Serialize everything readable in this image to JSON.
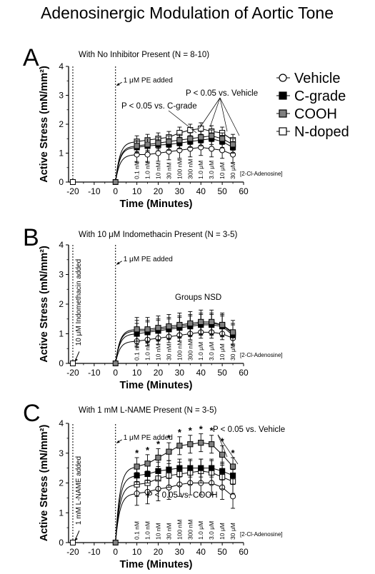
{
  "title": "Adenosinergic Modulation of Aortic Tone",
  "legend": {
    "entries": [
      {
        "label": "Vehicle",
        "marker": "circle",
        "fill": "#ffffff"
      },
      {
        "label": "C-grade",
        "marker": "square",
        "fill": "#000000"
      },
      {
        "label": "COOH",
        "marker": "square",
        "fill": "#7f7f7f"
      },
      {
        "label": "N-doped",
        "marker": "square",
        "fill": "#ffffff"
      }
    ]
  },
  "colors": {
    "vehicle": "#ffffff",
    "c_grade": "#000000",
    "cooh": "#7f7f7f",
    "n_doped": "#ffffff"
  },
  "chart_data": [
    {
      "type": "line",
      "panel_label": "A",
      "subtitle": "With No Inhibitor Present (N = 8-10)",
      "xlabel": "Time (Minutes)",
      "ylabel": "Active Stress (mN/mm²)",
      "xlim": [
        -22,
        60
      ],
      "ylim": [
        0,
        4
      ],
      "xticks": [
        "-20",
        "-10",
        "0",
        "10",
        "20",
        "30",
        "40",
        "50",
        "60"
      ],
      "yticks": [
        "0",
        "1",
        "2",
        "3",
        "4"
      ],
      "annotations": {
        "pe_added": "1 μM  PE added",
        "sig1": "P < 0.05 vs. Vehicle",
        "sig2": "P < 0.05 vs. C-grade",
        "dose_axis": "[2-Cl-Adenosine]"
      },
      "doses": [
        "0.1 nM",
        "1.0 nM",
        "10 nM",
        "30 nM",
        "100 nM",
        "300 nM",
        "1.0 μM",
        "3.0 μM",
        "10 μM",
        "30 μM"
      ],
      "x": [
        10,
        15,
        20,
        25,
        30,
        35,
        40,
        45,
        50,
        55
      ],
      "series": [
        {
          "name": "Vehicle",
          "baseline": 0,
          "values": [
            0.95,
            0.95,
            1.0,
            1.05,
            1.1,
            1.15,
            1.2,
            1.15,
            1.1,
            0.95
          ],
          "err": 0.28
        },
        {
          "name": "C-grade",
          "baseline": 0,
          "values": [
            1.2,
            1.25,
            1.28,
            1.3,
            1.35,
            1.4,
            1.45,
            1.5,
            1.4,
            1.2
          ],
          "err": 0.2
        },
        {
          "name": "COOH",
          "baseline": 0,
          "values": [
            1.25,
            1.3,
            1.35,
            1.4,
            1.45,
            1.5,
            1.55,
            1.6,
            1.5,
            1.3
          ],
          "err": 0.2
        },
        {
          "name": "N-doped",
          "baseline": 0,
          "values": [
            1.4,
            1.45,
            1.5,
            1.55,
            1.7,
            1.8,
            1.85,
            1.75,
            1.7,
            1.45
          ],
          "err": 0.2
        }
      ],
      "stars": []
    },
    {
      "type": "line",
      "panel_label": "B",
      "subtitle": "With 10 μM Indomethacin Present (N = 3-5)",
      "xlabel": "Time (Minutes)",
      "ylabel": "Active Stress (mN/mm²)",
      "xlim": [
        -22,
        60
      ],
      "ylim": [
        0,
        4
      ],
      "xticks": [
        "-20",
        "-10",
        "0",
        "10",
        "20",
        "30",
        "40",
        "50",
        "60"
      ],
      "yticks": [
        "0",
        "1",
        "2",
        "3",
        "4"
      ],
      "annotations": {
        "pe_added": "1 μM  PE added",
        "inhibitor": "10 μM  Indomethacin added",
        "note": "Groups NSD",
        "dose_axis": "[2-Cl-Adenosine]"
      },
      "doses": [
        "0.1 nM",
        "1.0 nM",
        "10 nM",
        "30 nM",
        "100 nM",
        "300 nM",
        "1.0 μM",
        "3.0 μM",
        "10 μM",
        "30 μM"
      ],
      "x": [
        10,
        15,
        20,
        25,
        30,
        35,
        40,
        45,
        50,
        55
      ],
      "series": [
        {
          "name": "Vehicle",
          "baseline": 0,
          "values": [
            0.75,
            0.8,
            0.85,
            0.9,
            0.95,
            1.0,
            1.05,
            1.05,
            1.0,
            0.85
          ],
          "err": 0.2
        },
        {
          "name": "C-grade",
          "baseline": 0,
          "values": [
            1.0,
            1.05,
            1.1,
            1.15,
            1.2,
            1.25,
            1.3,
            1.3,
            1.25,
            0.95
          ],
          "err": 0.35
        },
        {
          "name": "COOH",
          "baseline": 0,
          "values": [
            1.15,
            1.15,
            1.2,
            1.25,
            1.3,
            1.35,
            1.4,
            1.4,
            1.3,
            1.05
          ],
          "err": 0.4
        },
        {
          "name": "N-doped",
          "baseline": 0,
          "values": [
            1.1,
            1.1,
            1.15,
            1.2,
            1.25,
            1.3,
            1.35,
            1.35,
            1.3,
            1.0
          ],
          "err": 0.35
        }
      ],
      "stars": []
    },
    {
      "type": "line",
      "panel_label": "C",
      "subtitle": "With 1 mM L-NAME Present (N = 3-5)",
      "xlabel": "Time (Minutes)",
      "ylabel": "Active Stress (mN/mm²)",
      "xlim": [
        -22,
        60
      ],
      "ylim": [
        0,
        4
      ],
      "xticks": [
        "-20",
        "-10",
        "0",
        "10",
        "20",
        "30",
        "40",
        "50",
        "60"
      ],
      "yticks": [
        "0",
        "1",
        "2",
        "3",
        "4"
      ],
      "annotations": {
        "pe_added": "1 μM  PE added",
        "inhibitor": "1 mM  L-NAME added",
        "sig1": "P < 0.05 vs. Vehicle",
        "sig2": "P < 0.05 vs. COOH",
        "dose_axis": "[2-Cl-Adenosine]"
      },
      "doses": [
        "0.1 nM",
        "1.0 nM",
        "10 nM",
        "30 nM",
        "100 nM",
        "300 nM",
        "1.0 μM",
        "3.0 μM",
        "10 μM",
        "30 μM"
      ],
      "x": [
        10,
        15,
        20,
        25,
        30,
        35,
        40,
        45,
        50,
        55
      ],
      "series": [
        {
          "name": "Vehicle",
          "baseline": 0,
          "values": [
            1.65,
            1.7,
            1.8,
            1.85,
            1.95,
            2.0,
            2.0,
            2.0,
            1.85,
            1.55
          ],
          "err": 0.4
        },
        {
          "name": "C-grade",
          "baseline": 0,
          "values": [
            2.25,
            2.3,
            2.4,
            2.45,
            2.5,
            2.5,
            2.5,
            2.5,
            2.4,
            2.25
          ],
          "err": 0.3
        },
        {
          "name": "COOH",
          "baseline": 0,
          "values": [
            2.55,
            2.65,
            2.85,
            3.05,
            3.25,
            3.3,
            3.35,
            3.3,
            2.95,
            2.55
          ],
          "err": 0.3
        },
        {
          "name": "N-doped",
          "baseline": 0,
          "values": [
            1.95,
            2.0,
            2.15,
            2.25,
            2.3,
            2.35,
            2.4,
            2.35,
            2.2,
            2.05
          ],
          "err": 0.4
        }
      ],
      "stars": [
        "*",
        "*",
        "*",
        "*",
        "*",
        "*",
        "*",
        "*",
        "*",
        "*"
      ]
    }
  ]
}
